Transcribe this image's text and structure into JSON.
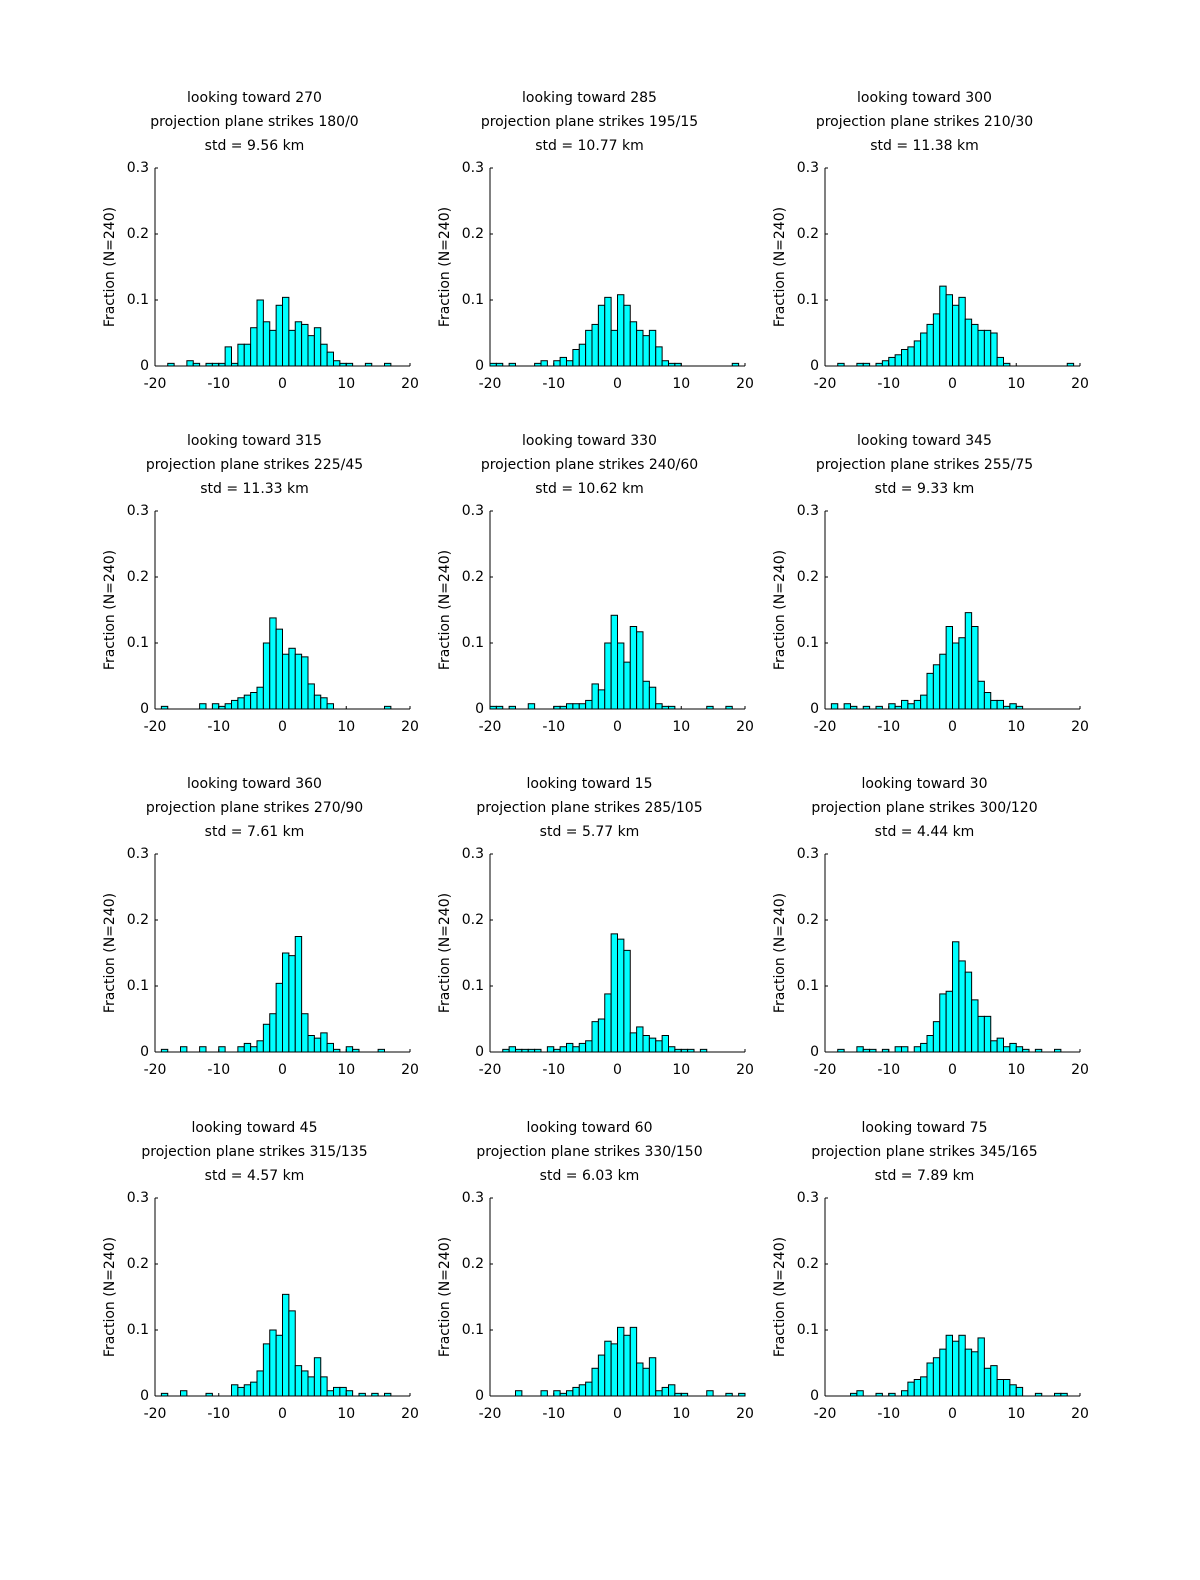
{
  "chart_data": [
    {
      "type": "histogram",
      "title": [
        "looking toward 270",
        "projection plane strikes 180/0",
        "std = 9.56 km"
      ],
      "ylabel": "Fraction (N=240)",
      "color": "#00ffff",
      "xlim": [
        -20,
        20
      ],
      "ylim": [
        0,
        0.3
      ],
      "xticks": [
        -20,
        -10,
        0,
        10,
        20
      ],
      "yticks": [
        0,
        0.1,
        0.2,
        0.3
      ],
      "bins": [
        -20,
        -19,
        -18,
        -17,
        -16,
        -15,
        -14,
        -13,
        -12,
        -11,
        -10,
        -9,
        -8,
        -7,
        -6,
        -5,
        -4,
        -3,
        -2,
        -1,
        0,
        1,
        2,
        3,
        4,
        5,
        6,
        7,
        8,
        9,
        10,
        11,
        12,
        13,
        14,
        15,
        16,
        17,
        18,
        19,
        20
      ],
      "values": [
        0,
        0,
        0.004,
        0,
        0,
        0.008,
        0.004,
        0,
        0.004,
        0.004,
        0.004,
        0.029,
        0.004,
        0.033,
        0.033,
        0.058,
        0.1,
        0.067,
        0.054,
        0.092,
        0.104,
        0.054,
        0.067,
        0.063,
        0.046,
        0.058,
        0.033,
        0.021,
        0.008,
        0.004,
        0.004,
        0,
        0,
        0.004,
        0,
        0,
        0.004,
        0,
        0,
        0
      ]
    },
    {
      "type": "histogram",
      "title": [
        "looking toward 285",
        "projection plane strikes 195/15",
        "std = 10.77 km"
      ],
      "ylabel": "Fraction (N=240)",
      "color": "#00ffff",
      "xlim": [
        -20,
        20
      ],
      "ylim": [
        0,
        0.3
      ],
      "xticks": [
        -20,
        -10,
        0,
        10,
        20
      ],
      "yticks": [
        0,
        0.1,
        0.2,
        0.3
      ],
      "bins": [
        -20,
        -19,
        -18,
        -17,
        -16,
        -15,
        -14,
        -13,
        -12,
        -11,
        -10,
        -9,
        -8,
        -7,
        -6,
        -5,
        -4,
        -3,
        -2,
        -1,
        0,
        1,
        2,
        3,
        4,
        5,
        6,
        7,
        8,
        9,
        10,
        11,
        12,
        13,
        14,
        15,
        16,
        17,
        18,
        19,
        20
      ],
      "values": [
        0.004,
        0.004,
        0,
        0.004,
        0,
        0,
        0,
        0.004,
        0.008,
        0,
        0.008,
        0.013,
        0.008,
        0.025,
        0.033,
        0.054,
        0.063,
        0.092,
        0.104,
        0.054,
        0.108,
        0.092,
        0.067,
        0.054,
        0.046,
        0.054,
        0.029,
        0.008,
        0.004,
        0.004,
        0,
        0,
        0,
        0,
        0,
        0,
        0,
        0,
        0.004,
        0
      ]
    },
    {
      "type": "histogram",
      "title": [
        "looking toward 300",
        "projection plane strikes 210/30",
        "std = 11.38 km"
      ],
      "ylabel": "Fraction (N=240)",
      "color": "#00ffff",
      "xlim": [
        -20,
        20
      ],
      "ylim": [
        0,
        0.3
      ],
      "xticks": [
        -20,
        -10,
        0,
        10,
        20
      ],
      "yticks": [
        0,
        0.1,
        0.2,
        0.3
      ],
      "bins": [
        -20,
        -19,
        -18,
        -17,
        -16,
        -15,
        -14,
        -13,
        -12,
        -11,
        -10,
        -9,
        -8,
        -7,
        -6,
        -5,
        -4,
        -3,
        -2,
        -1,
        0,
        1,
        2,
        3,
        4,
        5,
        6,
        7,
        8,
        9,
        10,
        11,
        12,
        13,
        14,
        15,
        16,
        17,
        18,
        19,
        20
      ],
      "values": [
        0,
        0,
        0.004,
        0,
        0,
        0.004,
        0.004,
        0,
        0.004,
        0.008,
        0.013,
        0.017,
        0.025,
        0.029,
        0.038,
        0.05,
        0.063,
        0.079,
        0.121,
        0.108,
        0.092,
        0.104,
        0.071,
        0.063,
        0.054,
        0.054,
        0.05,
        0.013,
        0.004,
        0,
        0,
        0,
        0,
        0,
        0,
        0,
        0,
        0,
        0.004,
        0
      ]
    },
    {
      "type": "histogram",
      "title": [
        "looking toward 315",
        "projection plane strikes 225/45",
        "std = 11.33 km"
      ],
      "ylabel": "Fraction (N=240)",
      "color": "#00ffff",
      "xlim": [
        -20,
        20
      ],
      "ylim": [
        0,
        0.3
      ],
      "xticks": [
        -20,
        -10,
        0,
        10,
        20
      ],
      "yticks": [
        0,
        0.1,
        0.2,
        0.3
      ],
      "bins": [
        -20,
        -19,
        -18,
        -17,
        -16,
        -15,
        -14,
        -13,
        -12,
        -11,
        -10,
        -9,
        -8,
        -7,
        -6,
        -5,
        -4,
        -3,
        -2,
        -1,
        0,
        1,
        2,
        3,
        4,
        5,
        6,
        7,
        8,
        9,
        10,
        11,
        12,
        13,
        14,
        15,
        16,
        17,
        18,
        19,
        20
      ],
      "values": [
        0,
        0.004,
        0,
        0,
        0,
        0,
        0,
        0.008,
        0,
        0.008,
        0.004,
        0.008,
        0.013,
        0.017,
        0.021,
        0.025,
        0.033,
        0.1,
        0.138,
        0.121,
        0.083,
        0.092,
        0.083,
        0.079,
        0.038,
        0.021,
        0.017,
        0.008,
        0,
        0,
        0,
        0,
        0,
        0,
        0,
        0,
        0.004,
        0,
        0,
        0
      ]
    },
    {
      "type": "histogram",
      "title": [
        "looking toward 330",
        "projection plane strikes 240/60",
        "std = 10.62 km"
      ],
      "ylabel": "Fraction (N=240)",
      "color": "#00ffff",
      "xlim": [
        -20,
        20
      ],
      "ylim": [
        0,
        0.3
      ],
      "xticks": [
        -20,
        -10,
        0,
        10,
        20
      ],
      "yticks": [
        0,
        0.1,
        0.2,
        0.3
      ],
      "bins": [
        -20,
        -19,
        -18,
        -17,
        -16,
        -15,
        -14,
        -13,
        -12,
        -11,
        -10,
        -9,
        -8,
        -7,
        -6,
        -5,
        -4,
        -3,
        -2,
        -1,
        0,
        1,
        2,
        3,
        4,
        5,
        6,
        7,
        8,
        9,
        10,
        11,
        12,
        13,
        14,
        15,
        16,
        17,
        18,
        19,
        20
      ],
      "values": [
        0.004,
        0.004,
        0,
        0.004,
        0,
        0,
        0.008,
        0,
        0,
        0,
        0.004,
        0.004,
        0.008,
        0.008,
        0.008,
        0.013,
        0.038,
        0.029,
        0.1,
        0.142,
        0.1,
        0.071,
        0.125,
        0.117,
        0.042,
        0.033,
        0.008,
        0.004,
        0.004,
        0,
        0,
        0,
        0,
        0,
        0.004,
        0,
        0,
        0.004,
        0,
        0
      ]
    },
    {
      "type": "histogram",
      "title": [
        "looking toward 345",
        "projection plane strikes 255/75",
        "std = 9.33 km"
      ],
      "ylabel": "Fraction (N=240)",
      "color": "#00ffff",
      "xlim": [
        -20,
        20
      ],
      "ylim": [
        0,
        0.3
      ],
      "xticks": [
        -20,
        -10,
        0,
        10,
        20
      ],
      "yticks": [
        0,
        0.1,
        0.2,
        0.3
      ],
      "bins": [
        -20,
        -19,
        -18,
        -17,
        -16,
        -15,
        -14,
        -13,
        -12,
        -11,
        -10,
        -9,
        -8,
        -7,
        -6,
        -5,
        -4,
        -3,
        -2,
        -1,
        0,
        1,
        2,
        3,
        4,
        5,
        6,
        7,
        8,
        9,
        10,
        11,
        12,
        13,
        14,
        15,
        16,
        17,
        18,
        19,
        20
      ],
      "values": [
        0,
        0.008,
        0,
        0.008,
        0.004,
        0,
        0.004,
        0,
        0.004,
        0,
        0.008,
        0.004,
        0.013,
        0.008,
        0.013,
        0.021,
        0.054,
        0.067,
        0.083,
        0.125,
        0.1,
        0.108,
        0.146,
        0.125,
        0.042,
        0.025,
        0.013,
        0.013,
        0.004,
        0.008,
        0.004,
        0,
        0,
        0,
        0,
        0,
        0,
        0,
        0,
        0
      ]
    },
    {
      "type": "histogram",
      "title": [
        "looking toward 360",
        "projection plane strikes 270/90",
        "std = 7.61 km"
      ],
      "ylabel": "Fraction (N=240)",
      "color": "#00ffff",
      "xlim": [
        -20,
        20
      ],
      "ylim": [
        0,
        0.3
      ],
      "xticks": [
        -20,
        -10,
        0,
        10,
        20
      ],
      "yticks": [
        0,
        0.1,
        0.2,
        0.3
      ],
      "bins": [
        -20,
        -19,
        -18,
        -17,
        -16,
        -15,
        -14,
        -13,
        -12,
        -11,
        -10,
        -9,
        -8,
        -7,
        -6,
        -5,
        -4,
        -3,
        -2,
        -1,
        0,
        1,
        2,
        3,
        4,
        5,
        6,
        7,
        8,
        9,
        10,
        11,
        12,
        13,
        14,
        15,
        16,
        17,
        18,
        19,
        20
      ],
      "values": [
        0,
        0.004,
        0,
        0,
        0.008,
        0,
        0,
        0.008,
        0,
        0,
        0.008,
        0,
        0,
        0.008,
        0.013,
        0.008,
        0.017,
        0.042,
        0.058,
        0.104,
        0.15,
        0.146,
        0.175,
        0.058,
        0.025,
        0.021,
        0.029,
        0.013,
        0.004,
        0,
        0.008,
        0.004,
        0,
        0,
        0,
        0.004,
        0,
        0,
        0,
        0
      ]
    },
    {
      "type": "histogram",
      "title": [
        "looking toward 15",
        "projection plane strikes 285/105",
        "std = 5.77 km"
      ],
      "ylabel": "Fraction (N=240)",
      "color": "#00ffff",
      "xlim": [
        -20,
        20
      ],
      "ylim": [
        0,
        0.3
      ],
      "xticks": [
        -20,
        -10,
        0,
        10,
        20
      ],
      "yticks": [
        0,
        0.1,
        0.2,
        0.3
      ],
      "bins": [
        -20,
        -19,
        -18,
        -17,
        -16,
        -15,
        -14,
        -13,
        -12,
        -11,
        -10,
        -9,
        -8,
        -7,
        -6,
        -5,
        -4,
        -3,
        -2,
        -1,
        0,
        1,
        2,
        3,
        4,
        5,
        6,
        7,
        8,
        9,
        10,
        11,
        12,
        13,
        14,
        15,
        16,
        17,
        18,
        19,
        20
      ],
      "values": [
        0,
        0,
        0.004,
        0.008,
        0.004,
        0.004,
        0.004,
        0.004,
        0,
        0.008,
        0.004,
        0.008,
        0.013,
        0.008,
        0.013,
        0.017,
        0.046,
        0.05,
        0.088,
        0.179,
        0.171,
        0.154,
        0.029,
        0.038,
        0.025,
        0.021,
        0.017,
        0.025,
        0.008,
        0.004,
        0.004,
        0.004,
        0,
        0.004,
        0,
        0,
        0,
        0,
        0,
        0
      ]
    },
    {
      "type": "histogram",
      "title": [
        "looking toward 30",
        "projection plane strikes 300/120",
        "std = 4.44 km"
      ],
      "ylabel": "Fraction (N=240)",
      "color": "#00ffff",
      "xlim": [
        -20,
        20
      ],
      "ylim": [
        0,
        0.3
      ],
      "xticks": [
        -20,
        -10,
        0,
        10,
        20
      ],
      "yticks": [
        0,
        0.1,
        0.2,
        0.3
      ],
      "bins": [
        -20,
        -19,
        -18,
        -17,
        -16,
        -15,
        -14,
        -13,
        -12,
        -11,
        -10,
        -9,
        -8,
        -7,
        -6,
        -5,
        -4,
        -3,
        -2,
        -1,
        0,
        1,
        2,
        3,
        4,
        5,
        6,
        7,
        8,
        9,
        10,
        11,
        12,
        13,
        14,
        15,
        16,
        17,
        18,
        19,
        20
      ],
      "values": [
        0,
        0,
        0.004,
        0,
        0,
        0.008,
        0.004,
        0.004,
        0,
        0.004,
        0,
        0.008,
        0.008,
        0,
        0.008,
        0.013,
        0.025,
        0.046,
        0.088,
        0.092,
        0.167,
        0.138,
        0.121,
        0.079,
        0.054,
        0.054,
        0.017,
        0.021,
        0.008,
        0.013,
        0.008,
        0.004,
        0,
        0.004,
        0,
        0,
        0.004,
        0,
        0,
        0
      ]
    },
    {
      "type": "histogram",
      "title": [
        "looking toward 45",
        "projection plane strikes 315/135",
        "std = 4.57 km"
      ],
      "ylabel": "Fraction (N=240)",
      "color": "#00ffff",
      "xlim": [
        -20,
        20
      ],
      "ylim": [
        0,
        0.3
      ],
      "xticks": [
        -20,
        -10,
        0,
        10,
        20
      ],
      "yticks": [
        0,
        0.1,
        0.2,
        0.3
      ],
      "bins": [
        -20,
        -19,
        -18,
        -17,
        -16,
        -15,
        -14,
        -13,
        -12,
        -11,
        -10,
        -9,
        -8,
        -7,
        -6,
        -5,
        -4,
        -3,
        -2,
        -1,
        0,
        1,
        2,
        3,
        4,
        5,
        6,
        7,
        8,
        9,
        10,
        11,
        12,
        13,
        14,
        15,
        16,
        17,
        18,
        19,
        20
      ],
      "values": [
        0,
        0.004,
        0,
        0,
        0.008,
        0,
        0,
        0,
        0.004,
        0,
        0,
        0,
        0.017,
        0.013,
        0.017,
        0.021,
        0.038,
        0.079,
        0.1,
        0.092,
        0.154,
        0.129,
        0.046,
        0.038,
        0.029,
        0.058,
        0.029,
        0.008,
        0.013,
        0.013,
        0.008,
        0,
        0.004,
        0,
        0.004,
        0,
        0.004,
        0,
        0,
        0
      ]
    },
    {
      "type": "histogram",
      "title": [
        "looking toward 60",
        "projection plane strikes 330/150",
        "std = 6.03 km"
      ],
      "ylabel": "Fraction (N=240)",
      "color": "#00ffff",
      "xlim": [
        -20,
        20
      ],
      "ylim": [
        0,
        0.3
      ],
      "xticks": [
        -20,
        -10,
        0,
        10,
        20
      ],
      "yticks": [
        0,
        0.1,
        0.2,
        0.3
      ],
      "bins": [
        -20,
        -19,
        -18,
        -17,
        -16,
        -15,
        -14,
        -13,
        -12,
        -11,
        -10,
        -9,
        -8,
        -7,
        -6,
        -5,
        -4,
        -3,
        -2,
        -1,
        0,
        1,
        2,
        3,
        4,
        5,
        6,
        7,
        8,
        9,
        10,
        11,
        12,
        13,
        14,
        15,
        16,
        17,
        18,
        19,
        20
      ],
      "values": [
        0,
        0,
        0,
        0,
        0.008,
        0,
        0,
        0,
        0.008,
        0,
        0.008,
        0.004,
        0.008,
        0.013,
        0.017,
        0.021,
        0.042,
        0.062,
        0.083,
        0.079,
        0.104,
        0.092,
        0.104,
        0.05,
        0.042,
        0.058,
        0.008,
        0.013,
        0.017,
        0.004,
        0.004,
        0,
        0,
        0,
        0.008,
        0,
        0,
        0.004,
        0,
        0.004
      ]
    },
    {
      "type": "histogram",
      "title": [
        "looking toward 75",
        "projection plane strikes 345/165",
        "std = 7.89 km"
      ],
      "ylabel": "Fraction (N=240)",
      "color": "#00ffff",
      "xlim": [
        -20,
        20
      ],
      "ylim": [
        0,
        0.3
      ],
      "xticks": [
        -20,
        -10,
        0,
        10,
        20
      ],
      "yticks": [
        0,
        0.1,
        0.2,
        0.3
      ],
      "bins": [
        -20,
        -19,
        -18,
        -17,
        -16,
        -15,
        -14,
        -13,
        -12,
        -11,
        -10,
        -9,
        -8,
        -7,
        -6,
        -5,
        -4,
        -3,
        -2,
        -1,
        0,
        1,
        2,
        3,
        4,
        5,
        6,
        7,
        8,
        9,
        10,
        11,
        12,
        13,
        14,
        15,
        16,
        17,
        18,
        19,
        20
      ],
      "values": [
        0,
        0,
        0,
        0,
        0.004,
        0.008,
        0,
        0,
        0.004,
        0,
        0.004,
        0,
        0.008,
        0.021,
        0.025,
        0.029,
        0.05,
        0.058,
        0.071,
        0.092,
        0.083,
        0.092,
        0.071,
        0.067,
        0.088,
        0.042,
        0.046,
        0.025,
        0.025,
        0.017,
        0.013,
        0,
        0,
        0.004,
        0,
        0,
        0.004,
        0.004,
        0,
        0
      ]
    }
  ]
}
